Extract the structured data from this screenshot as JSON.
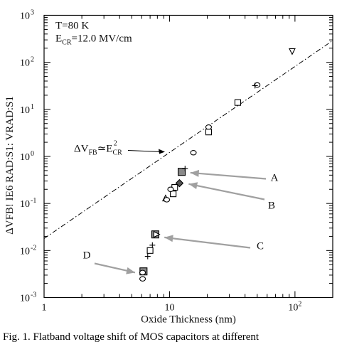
{
  "chart_data": {
    "type": "scatter",
    "xlabel": "Oxide Thickness (nm)",
    "ylabel": "ΔVFB! IE6 RAD:S1:   VRAD:S1",
    "xscale": "log",
    "yscale": "log",
    "xlim": [
      1,
      200
    ],
    "ylim": [
      0.001,
      1000
    ],
    "x_ticks": [
      {
        "value": 1,
        "base": "1",
        "exp": ""
      },
      {
        "value": 10,
        "base": "10",
        "exp": ""
      },
      {
        "value": 100,
        "base": "10",
        "exp": "2"
      }
    ],
    "y_ticks": [
      {
        "value": 0.001,
        "base": "10",
        "exp": "-3"
      },
      {
        "value": 0.01,
        "base": "10",
        "exp": "-2"
      },
      {
        "value": 0.1,
        "base": "10",
        "exp": "-1"
      },
      {
        "value": 1,
        "base": "10",
        "exp": "0"
      },
      {
        "value": 10,
        "base": "10",
        "exp": "1"
      },
      {
        "value": 100,
        "base": "10",
        "exp": "2"
      },
      {
        "value": 1000,
        "base": "10",
        "exp": "3"
      }
    ],
    "conditions": [
      "T=80 K",
      "E_CR=12.0 MV/cm"
    ],
    "fit_line": {
      "x": [
        1,
        200
      ],
      "y": [
        0.018,
        290
      ],
      "style": "dash-dot"
    },
    "fit_label": "ΔV_FB ≃ E_CR^2",
    "points": [
      {
        "x": 95,
        "y": 170,
        "marker": "triangle-down"
      },
      {
        "x": 50,
        "y": 33,
        "marker": "circle"
      },
      {
        "x": 48,
        "y": 32,
        "marker": "plus"
      },
      {
        "x": 35,
        "y": 14,
        "marker": "square"
      },
      {
        "x": 20.5,
        "y": 4.2,
        "marker": "circle"
      },
      {
        "x": 20.5,
        "y": 3.3,
        "marker": "square"
      },
      {
        "x": 15.5,
        "y": 1.2,
        "marker": "circle"
      },
      {
        "x": 12.5,
        "y": 0.47,
        "marker": "square-filled"
      },
      {
        "x": 13.3,
        "y": 0.55,
        "marker": "plus"
      },
      {
        "x": 12.0,
        "y": 0.27,
        "marker": "diamond-filled"
      },
      {
        "x": 11.0,
        "y": 0.22,
        "marker": "square"
      },
      {
        "x": 10.7,
        "y": 0.16,
        "marker": "square"
      },
      {
        "x": 10.2,
        "y": 0.2,
        "marker": "circle"
      },
      {
        "x": 9.3,
        "y": 0.13,
        "marker": "triangle"
      },
      {
        "x": 9.5,
        "y": 0.12,
        "marker": "circle"
      },
      {
        "x": 7.7,
        "y": 0.022,
        "marker": "square-filled"
      },
      {
        "x": 7.9,
        "y": 0.022,
        "marker": "triangle-right"
      },
      {
        "x": 7.3,
        "y": 0.013,
        "marker": "plus"
      },
      {
        "x": 7.0,
        "y": 0.01,
        "marker": "square"
      },
      {
        "x": 6.7,
        "y": 0.0075,
        "marker": "plus"
      },
      {
        "x": 6.2,
        "y": 0.0036,
        "marker": "square-filled"
      },
      {
        "x": 6.1,
        "y": 0.0034,
        "marker": "circle"
      },
      {
        "x": 6.1,
        "y": 0.0025,
        "marker": "circle"
      }
    ],
    "annotations": [
      {
        "label": "A",
        "x": 13.2,
        "y": 0.45
      },
      {
        "label": "B",
        "x": 12.8,
        "y": 0.26
      },
      {
        "label": "C",
        "x": 8.2,
        "y": 0.019
      },
      {
        "label": "D",
        "x": 5.9,
        "y": 0.0034
      }
    ],
    "grid": false,
    "legend": "none"
  },
  "caption": "Fig. 1. Flatband voltage shift of MOS capacitors at different"
}
